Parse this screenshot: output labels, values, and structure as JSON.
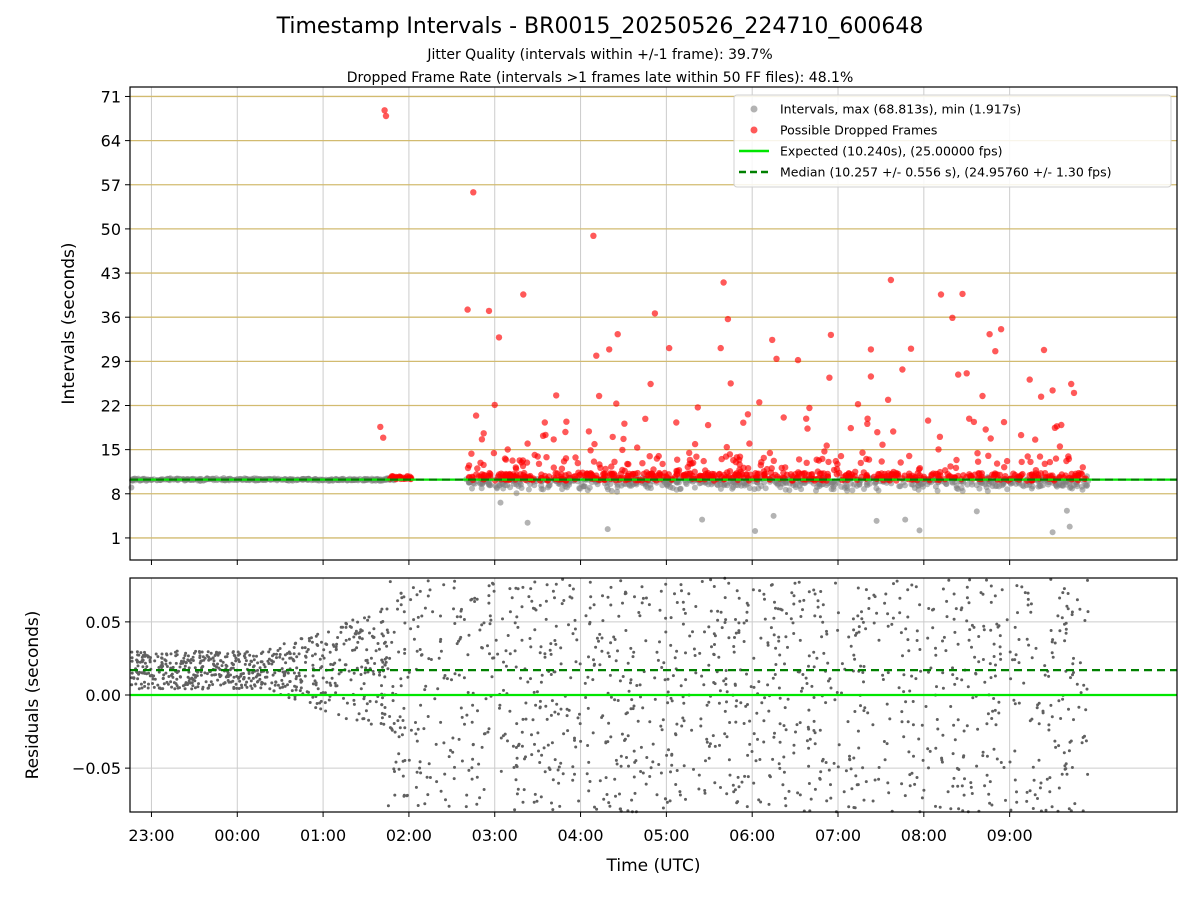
{
  "title": "Timestamp Intervals - BR0015_20250526_224710_600648",
  "subtitle1": "Jitter Quality (intervals within +/-1 frame): 39.7%",
  "subtitle2": "Dropped Frame Rate (intervals >1 frames late within 50 FF files): 48.1%",
  "colors": {
    "interval_gray": "#808080",
    "dropped_red": "#ff0000",
    "expected_green": "#00e600",
    "median_green": "#008000",
    "hgrid_gold": "#d2bb70",
    "grid_gray": "#cccccc"
  },
  "chart_data": [
    {
      "type": "scatter",
      "name": "intervals-panel",
      "ylabel": "Intervals (seconds)",
      "xlabel": "",
      "xlim_hours": [
        -1.25,
        10.95
      ],
      "ylim": [
        -2.5,
        72.5
      ],
      "yticks": [
        1,
        8,
        15,
        22,
        29,
        36,
        43,
        50,
        57,
        64,
        71
      ],
      "ytick_labels": [
        "1",
        "8",
        "15",
        "22",
        "29",
        "36",
        "43",
        "50",
        "57",
        "64",
        "71"
      ],
      "grid": "horizontal gold lines at y ticks, vertical gray lines at x ticks",
      "legend_position": "upper-right",
      "legend": [
        {
          "label": "Intervals, max (68.813s), min (1.917s)",
          "kind": "gray-dot"
        },
        {
          "label": "Possible Dropped Frames",
          "kind": "red-dot"
        },
        {
          "label": "Expected (10.240s), (25.00000 fps)",
          "kind": "solid-green"
        },
        {
          "label": "Median (10.257 +/- 0.556 s), (24.95760 +/- 1.30 fps)",
          "kind": "dashed-green"
        }
      ],
      "expected_value": 10.24,
      "median_value": 10.257,
      "intervals_max": 68.813,
      "intervals_min": 1.917,
      "dropped_points": [
        {
          "x": "01:43",
          "y": 68.8
        },
        {
          "x": "01:44",
          "y": 67.9
        },
        {
          "x": "02:45",
          "y": 55.8
        },
        {
          "x": "04:09",
          "y": 48.9
        },
        {
          "x": "05:40",
          "y": 41.5
        },
        {
          "x": "07:37",
          "y": 41.9
        },
        {
          "x": "03:20",
          "y": 39.6
        },
        {
          "x": "08:12",
          "y": 39.6
        },
        {
          "x": "08:27",
          "y": 39.7
        },
        {
          "x": "02:41",
          "y": 37.2
        },
        {
          "x": "02:56",
          "y": 37.0
        },
        {
          "x": "04:52",
          "y": 36.6
        },
        {
          "x": "05:43",
          "y": 35.7
        },
        {
          "x": "08:20",
          "y": 35.9
        },
        {
          "x": "08:54",
          "y": 34.1
        },
        {
          "x": "04:26",
          "y": 33.3
        },
        {
          "x": "06:55",
          "y": 33.2
        },
        {
          "x": "08:46",
          "y": 33.3
        },
        {
          "x": "03:03",
          "y": 32.8
        },
        {
          "x": "06:14",
          "y": 32.4
        },
        {
          "x": "05:02",
          "y": 31.1
        },
        {
          "x": "05:38",
          "y": 31.1
        },
        {
          "x": "07:23",
          "y": 30.9
        },
        {
          "x": "07:51",
          "y": 31.0
        },
        {
          "x": "09:24",
          "y": 30.8
        },
        {
          "x": "08:50",
          "y": 30.6
        },
        {
          "x": "04:11",
          "y": 29.9
        },
        {
          "x": "04:20",
          "y": 30.9
        },
        {
          "x": "06:17",
          "y": 29.4
        },
        {
          "x": "06:32",
          "y": 29.2
        },
        {
          "x": "07:45",
          "y": 27.7
        },
        {
          "x": "08:30",
          "y": 27.1
        },
        {
          "x": "08:24",
          "y": 26.9
        },
        {
          "x": "04:49",
          "y": 25.4
        },
        {
          "x": "05:45",
          "y": 25.5
        },
        {
          "x": "06:54",
          "y": 26.4
        },
        {
          "x": "07:23",
          "y": 26.6
        },
        {
          "x": "09:14",
          "y": 26.1
        },
        {
          "x": "09:43",
          "y": 25.4
        },
        {
          "x": "01:40",
          "y": 18.6
        },
        {
          "x": "01:42",
          "y": 16.9
        },
        {
          "x": "02:47",
          "y": 20.4
        },
        {
          "x": "03:00",
          "y": 22.1
        },
        {
          "x": "03:43",
          "y": 23.6
        },
        {
          "x": "04:13",
          "y": 23.5
        },
        {
          "x": "04:25",
          "y": 22.3
        },
        {
          "x": "05:22",
          "y": 21.7
        },
        {
          "x": "06:05",
          "y": 22.5
        },
        {
          "x": "06:40",
          "y": 21.6
        },
        {
          "x": "07:14",
          "y": 22.2
        },
        {
          "x": "07:35",
          "y": 22.9
        },
        {
          "x": "08:41",
          "y": 23.5
        },
        {
          "x": "09:22",
          "y": 23.4
        },
        {
          "x": "09:30",
          "y": 24.4
        },
        {
          "x": "09:45",
          "y": 24.0
        },
        {
          "x": "03:35",
          "y": 19.3
        },
        {
          "x": "04:30",
          "y": 16.7
        },
        {
          "x": "05:57",
          "y": 20.6
        },
        {
          "x": "06:22",
          "y": 20.1
        },
        {
          "x": "08:03",
          "y": 19.6
        },
        {
          "x": "08:35",
          "y": 19.4
        },
        {
          "x": "09:08",
          "y": 17.3
        },
        {
          "x": "09:33",
          "y": 18.7
        }
      ],
      "interval_cloud": {
        "description": "dense gray points around the median, tight before 01:45, wider spread from 02:40 onward",
        "tight_window": [
          "22:46",
          "01:50"
        ],
        "wide_window": [
          "02:40",
          "09:55"
        ],
        "scattered_lows": [
          {
            "x": "22:46",
            "y": 9.0
          },
          {
            "x": "03:04",
            "y": 6.6
          },
          {
            "x": "03:23",
            "y": 3.4
          },
          {
            "x": "04:19",
            "y": 2.4
          },
          {
            "x": "05:25",
            "y": 3.9
          },
          {
            "x": "06:02",
            "y": 2.1
          },
          {
            "x": "06:15",
            "y": 4.5
          },
          {
            "x": "07:27",
            "y": 3.7
          },
          {
            "x": "07:47",
            "y": 3.9
          },
          {
            "x": "07:57",
            "y": 2.2
          },
          {
            "x": "08:37",
            "y": 5.2
          },
          {
            "x": "09:30",
            "y": 1.9
          },
          {
            "x": "09:40",
            "y": 5.3
          },
          {
            "x": "09:42",
            "y": 2.8
          }
        ]
      }
    },
    {
      "type": "scatter",
      "name": "residuals-panel",
      "ylabel": "Residuals (seconds)",
      "xlabel": "Time (UTC)",
      "xlim_hours": [
        -1.25,
        10.95
      ],
      "ylim": [
        -0.08,
        0.08
      ],
      "yticks": [
        -0.05,
        0.0,
        0.05
      ],
      "ytick_labels": [
        "−0.05",
        "0.00",
        "0.05"
      ],
      "xticks": [
        "23:00",
        "00:00",
        "01:00",
        "02:00",
        "03:00",
        "04:00",
        "05:00",
        "06:00",
        "07:00",
        "08:00",
        "09:00"
      ],
      "grid": "horizontal and vertical gray lines at ticks",
      "expected_value": 0.0,
      "median_value": 0.017,
      "residual_cloud": {
        "description": "dense band near +0.017 s before 01:45, then uniform spread across the full range",
        "tight_window": [
          "22:46",
          "01:45"
        ],
        "tight_center": 0.017,
        "tight_halfwidth": 0.013,
        "wide_window": [
          "01:45",
          "09:55"
        ]
      }
    }
  ]
}
